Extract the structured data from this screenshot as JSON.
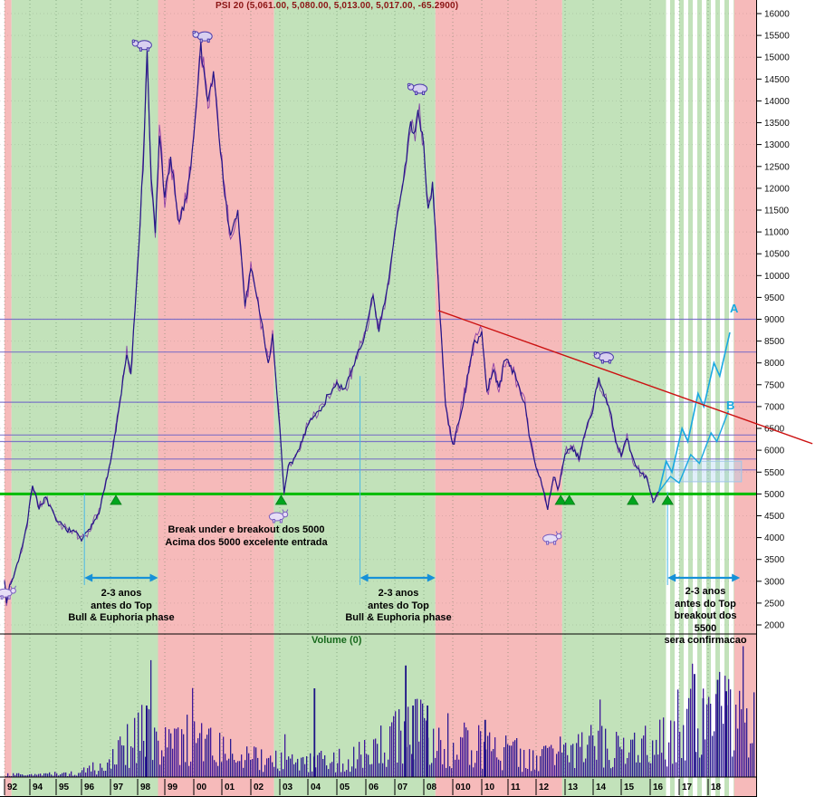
{
  "window": {
    "title": "PSI 20 (5,061.00, 5,080.00, 5,013.00, 5,017.00, -65.2900)"
  },
  "labels": {
    "volume": "Volume (0)",
    "proj_a": "A",
    "proj_b": "B"
  },
  "annotations": {
    "entry": "Break under e breakout dos 5000\nAcima dos 5000 excelente entrada",
    "phase_left": "2-3 anos\nantes do Top\nBull & Euphoria phase",
    "phase_mid": "2-3 anos\nantes do Top\nBull & Euphoria phase",
    "phase_right": "2-3 anos\nantes do Top\nbreakout dos\n5500\nsera confirmacao"
  },
  "colors": {
    "bull_band": "#c2e2ba",
    "bear_band": "#f6baba",
    "price_line": "#241688",
    "price_line2": "rgba(110,25,160,0.75)",
    "support_green": "#00bb00",
    "resistance_purple": "#6f64c8",
    "trendline_red": "#cc1111",
    "projection_cyan": "#18a8e0",
    "arrow_blue": "#1691d8",
    "volume_bar": "#2b1b92",
    "volume_bar2": "#41189a",
    "title_red": "#8b1414",
    "triangle_green": "#00a51e"
  },
  "chart_data": {
    "type": "line",
    "title": "PSI 20 (5,061.00, 5,080.00, 5,013.00, 5,017.00, -65.2900)",
    "xlabel": "",
    "ylabel": "",
    "grid": true,
    "legend": false,
    "y_axis": {
      "min": 2000,
      "max": 16000,
      "step": 500
    },
    "x_ticks": [
      {
        "label": "92",
        "year": 1992
      },
      {
        "label": "94",
        "year": 1994
      },
      {
        "label": "95",
        "year": 1995
      },
      {
        "label": "96",
        "year": 1996
      },
      {
        "label": "97",
        "year": 1997
      },
      {
        "label": "98",
        "year": 1998
      },
      {
        "label": "99",
        "year": 1999
      },
      {
        "label": "00",
        "year": 2000
      },
      {
        "label": "01",
        "year": 2001
      },
      {
        "label": "02",
        "year": 2002
      },
      {
        "label": "03",
        "year": 2003
      },
      {
        "label": "04",
        "year": 2004
      },
      {
        "label": "05",
        "year": 2005
      },
      {
        "label": "06",
        "year": 2006
      },
      {
        "label": "07",
        "year": 2007
      },
      {
        "label": "08",
        "year": 2008
      },
      {
        "label": "010",
        "year": 2009
      },
      {
        "label": "10",
        "year": 2010
      },
      {
        "label": "11",
        "year": 2011
      },
      {
        "label": "12",
        "year": 2012
      },
      {
        "label": "13",
        "year": 2013
      },
      {
        "label": "14",
        "year": 2014
      },
      {
        "label": "15",
        "year": 2015
      },
      {
        "label": "16",
        "year": 2016
      },
      {
        "label": "17",
        "year": 2017
      },
      {
        "label": "18",
        "year": 2018
      }
    ],
    "price_series": [
      [
        1992.0,
        3050
      ],
      [
        1992.15,
        2500
      ],
      [
        1992.4,
        2900
      ],
      [
        1992.7,
        3100
      ],
      [
        1993.0,
        3400
      ],
      [
        1993.4,
        3800
      ],
      [
        1993.8,
        4300
      ],
      [
        1994.1,
        5200
      ],
      [
        1994.35,
        4700
      ],
      [
        1994.6,
        4900
      ],
      [
        1995.0,
        4400
      ],
      [
        1995.4,
        4200
      ],
      [
        1995.8,
        4100
      ],
      [
        1996.0,
        3950
      ],
      [
        1996.3,
        4200
      ],
      [
        1996.6,
        4600
      ],
      [
        1997.0,
        5700
      ],
      [
        1997.3,
        6900
      ],
      [
        1997.6,
        8200
      ],
      [
        1997.75,
        7700
      ],
      [
        1998.0,
        10200
      ],
      [
        1998.2,
        12500
      ],
      [
        1998.35,
        15000
      ],
      [
        1998.5,
        12200
      ],
      [
        1998.65,
        11000
      ],
      [
        1998.8,
        13200
      ],
      [
        1999.0,
        11800
      ],
      [
        1999.2,
        12600
      ],
      [
        1999.5,
        11200
      ],
      [
        1999.8,
        12000
      ],
      [
        2000.0,
        13200
      ],
      [
        2000.25,
        15250
      ],
      [
        2000.5,
        14000
      ],
      [
        2000.7,
        14700
      ],
      [
        2001.0,
        12500
      ],
      [
        2001.3,
        10800
      ],
      [
        2001.55,
        11500
      ],
      [
        2001.8,
        9300
      ],
      [
        2002.0,
        10200
      ],
      [
        2002.3,
        9200
      ],
      [
        2002.6,
        8000
      ],
      [
        2002.75,
        8600
      ],
      [
        2003.0,
        6500
      ],
      [
        2003.15,
        5000
      ],
      [
        2003.3,
        5600
      ],
      [
        2003.6,
        5900
      ],
      [
        2004.0,
        6600
      ],
      [
        2004.5,
        7000
      ],
      [
        2005.0,
        7600
      ],
      [
        2005.25,
        7300
      ],
      [
        2005.7,
        8200
      ],
      [
        2006.0,
        8700
      ],
      [
        2006.25,
        9500
      ],
      [
        2006.45,
        8700
      ],
      [
        2006.8,
        9900
      ],
      [
        2007.0,
        11000
      ],
      [
        2007.3,
        12200
      ],
      [
        2007.55,
        13600
      ],
      [
        2007.65,
        13100
      ],
      [
        2007.8,
        13900
      ],
      [
        2008.0,
        12900
      ],
      [
        2008.15,
        11500
      ],
      [
        2008.3,
        12100
      ],
      [
        2008.5,
        9800
      ],
      [
        2008.75,
        7000
      ],
      [
        2009.0,
        6100
      ],
      [
        2009.2,
        6600
      ],
      [
        2009.5,
        7600
      ],
      [
        2009.75,
        8500
      ],
      [
        2010.0,
        8700
      ],
      [
        2010.2,
        7300
      ],
      [
        2010.45,
        7900
      ],
      [
        2010.65,
        7400
      ],
      [
        2010.85,
        8000
      ],
      [
        2011.0,
        8100
      ],
      [
        2011.3,
        7600
      ],
      [
        2011.6,
        7100
      ],
      [
        2011.8,
        6200
      ],
      [
        2012.0,
        5600
      ],
      [
        2012.2,
        5200
      ],
      [
        2012.4,
        4650
      ],
      [
        2012.6,
        5400
      ],
      [
        2012.75,
        5100
      ],
      [
        2013.0,
        5900
      ],
      [
        2013.25,
        6100
      ],
      [
        2013.5,
        5800
      ],
      [
        2013.75,
        6500
      ],
      [
        2014.0,
        7000
      ],
      [
        2014.2,
        7650
      ],
      [
        2014.4,
        7200
      ],
      [
        2014.6,
        6900
      ],
      [
        2014.8,
        6200
      ],
      [
        2015.0,
        5900
      ],
      [
        2015.2,
        6250
      ],
      [
        2015.45,
        5700
      ],
      [
        2015.7,
        5500
      ],
      [
        2015.9,
        5350
      ],
      [
        2016.1,
        4800
      ],
      [
        2016.3,
        5050
      ]
    ],
    "projection_a": [
      [
        2016.3,
        5050
      ],
      [
        2016.55,
        5750
      ],
      [
        2016.75,
        5500
      ],
      [
        2017.1,
        6500
      ],
      [
        2017.3,
        6200
      ],
      [
        2017.65,
        7300
      ],
      [
        2017.85,
        7000
      ],
      [
        2018.2,
        8000
      ],
      [
        2018.4,
        7700
      ],
      [
        2018.75,
        8700
      ]
    ],
    "projection_b": [
      [
        2016.3,
        5050
      ],
      [
        2016.7,
        5400
      ],
      [
        2017.0,
        5250
      ],
      [
        2017.4,
        5900
      ],
      [
        2017.7,
        5700
      ],
      [
        2018.1,
        6400
      ],
      [
        2018.3,
        6200
      ],
      [
        2018.7,
        6900
      ]
    ],
    "resistance_levels": [
      9000,
      8250,
      7100,
      6350,
      6200,
      5800,
      5550
    ],
    "support_level": 5000,
    "trendline": {
      "from": [
        2008.5,
        9200
      ],
      "to": [
        2021.6,
        6150
      ]
    },
    "phases": [
      {
        "from": 1991.75,
        "to": 1992.55,
        "type": "bear"
      },
      {
        "from": 1992.55,
        "to": 1998.75,
        "type": "bull"
      },
      {
        "from": 1998.75,
        "to": 2002.8,
        "type": "bear"
      },
      {
        "from": 2002.8,
        "to": 2008.4,
        "type": "bull"
      },
      {
        "from": 2008.4,
        "to": 2012.9,
        "type": "bear"
      },
      {
        "from": 2012.9,
        "to": 2016.55,
        "type": "bull"
      },
      {
        "from": 2016.55,
        "to": 2018.9,
        "type": "projection"
      },
      {
        "from": 2018.9,
        "to": 2019.7,
        "type": "bear"
      }
    ],
    "measure_arrows": [
      {
        "from": 1996.1,
        "to": 1998.75
      },
      {
        "from": 2005.8,
        "to": 2008.4
      },
      {
        "from": 2016.6,
        "to": 2019.1
      }
    ],
    "guide_lines": [
      {
        "year": 1996.1,
        "price": 5000
      },
      {
        "year": 2005.8,
        "price": 7700
      },
      {
        "year": 2016.6,
        "price": 5050
      }
    ],
    "breakout_box": {
      "from_year": 2016.55,
      "to_year": 2019.15,
      "price_top": 5750,
      "price_bottom": 5280
    },
    "markers": {
      "triangles_years": [
        1997.2,
        2003.05,
        2012.85,
        2013.15,
        2015.4,
        2016.6
      ],
      "bulls": [
        [
          1992.15,
          2750
        ],
        [
          2002.95,
          4500
        ],
        [
          2012.55,
          4000
        ]
      ],
      "bears": [
        [
          1998.18,
          15300
        ],
        [
          2000.33,
          15500
        ],
        [
          2007.8,
          14300
        ],
        [
          2014.4,
          8150
        ]
      ]
    },
    "volume_profile": [
      [
        1992,
        0.02
      ],
      [
        1995,
        0.02
      ],
      [
        1996,
        0.04
      ],
      [
        1997,
        0.14
      ],
      [
        1998,
        0.38
      ],
      [
        1999,
        0.3
      ],
      [
        2000,
        0.34
      ],
      [
        2001,
        0.22
      ],
      [
        2002,
        0.16
      ],
      [
        2003,
        0.13
      ],
      [
        2004,
        0.14
      ],
      [
        2005,
        0.16
      ],
      [
        2006,
        0.22
      ],
      [
        2007,
        0.42
      ],
      [
        2008,
        0.44
      ],
      [
        2009,
        0.3
      ],
      [
        2010,
        0.26
      ],
      [
        2011,
        0.22
      ],
      [
        2012,
        0.16
      ],
      [
        2013,
        0.22
      ],
      [
        2014,
        0.28
      ],
      [
        2015,
        0.22
      ],
      [
        2016,
        0.28
      ],
      [
        2017,
        0.46
      ],
      [
        2018,
        0.55
      ],
      [
        2019.3,
        0.5
      ]
    ],
    "volume_spikes": [
      [
        1998.3,
        0.5
      ],
      [
        2004.2,
        0.62
      ],
      [
        2007.35,
        0.78
      ],
      [
        2007.6,
        0.5
      ],
      [
        2008.1,
        0.5
      ],
      [
        2010.1,
        0.4
      ],
      [
        2017.5,
        0.72
      ],
      [
        2017.8,
        0.55
      ],
      [
        2018.3,
        0.68
      ],
      [
        2018.6,
        0.6
      ]
    ]
  }
}
